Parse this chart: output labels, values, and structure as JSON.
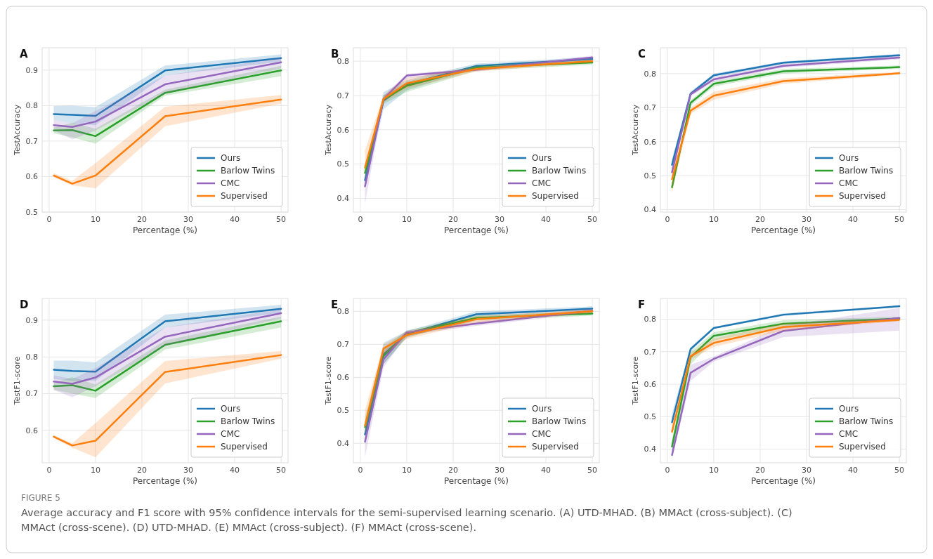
{
  "chart_data": [
    {
      "type": "line",
      "title": "A",
      "xlabel": "Percentage (%)",
      "ylabel": "TestAccuracy",
      "xlim": [
        -1.5,
        51.5
      ],
      "ylim": [
        0.5,
        0.963
      ],
      "xticks": [
        0,
        10,
        20,
        30,
        40,
        50
      ],
      "yticks": [
        0.5,
        0.6,
        0.7,
        0.8,
        0.9
      ],
      "grid": true,
      "legend": "bottom right",
      "x": [
        1,
        5,
        10,
        25,
        50
      ],
      "series": [
        {
          "name": "Ours",
          "color": "#1f77b4",
          "values": [
            0.776,
            0.774,
            0.771,
            0.899,
            0.934
          ],
          "lower": [
            0.76,
            0.75,
            0.745,
            0.885,
            0.924
          ],
          "upper": [
            0.799,
            0.8,
            0.796,
            0.913,
            0.944
          ]
        },
        {
          "name": "Barlow Twins",
          "color": "#2ca02c",
          "values": [
            0.73,
            0.731,
            0.714,
            0.836,
            0.899
          ],
          "lower": [
            0.722,
            0.71,
            0.693,
            0.828,
            0.883
          ],
          "upper": [
            0.738,
            0.752,
            0.735,
            0.845,
            0.912
          ]
        },
        {
          "name": "CMC",
          "color": "#9467bd",
          "values": [
            0.745,
            0.74,
            0.755,
            0.86,
            0.922
          ],
          "lower": [
            0.73,
            0.705,
            0.73,
            0.835,
            0.905
          ],
          "upper": [
            0.76,
            0.75,
            0.785,
            0.885,
            0.935
          ]
        },
        {
          "name": "Supervised",
          "color": "#ff7f0e",
          "values": [
            0.603,
            0.58,
            0.603,
            0.77,
            0.817
          ],
          "lower": [
            0.598,
            0.575,
            0.567,
            0.742,
            0.805
          ],
          "upper": [
            0.61,
            0.588,
            0.638,
            0.797,
            0.83
          ]
        }
      ],
      "annotations": [
        "FIGURE 5",
        "Average accuracy and F1 score with 95% confidence intervals for the semi-supervised learning scenario. (A) UTD-MHAD. (B) MMAct (cross-subject). (C) MMAct (cross-scene). (D) UTD-MHAD. (E) MMAct (cross-subject). (F) MMAct (cross-scene)."
      ]
    },
    {
      "type": "line",
      "title": "B",
      "xlabel": "Percentage (%)",
      "ylabel": "TestAccuracy",
      "xlim": [
        -1.5,
        51.5
      ],
      "ylim": [
        0.36,
        0.839
      ],
      "xticks": [
        0,
        10,
        20,
        30,
        40,
        50
      ],
      "yticks": [
        0.4,
        0.5,
        0.6,
        0.7,
        0.8
      ],
      "grid": true,
      "legend": "bottom right",
      "x": [
        1,
        5,
        10,
        25,
        50
      ],
      "series": [
        {
          "name": "Ours",
          "color": "#1f77b4",
          "values": [
            0.453,
            0.685,
            0.732,
            0.786,
            0.806
          ],
          "lower": [
            0.43,
            0.66,
            0.715,
            0.778,
            0.8
          ],
          "upper": [
            0.48,
            0.71,
            0.745,
            0.793,
            0.812
          ]
        },
        {
          "name": "Barlow Twins",
          "color": "#2ca02c",
          "values": [
            0.474,
            0.688,
            0.728,
            0.781,
            0.796
          ],
          "lower": [
            0.455,
            0.675,
            0.71,
            0.772,
            0.79
          ],
          "upper": [
            0.49,
            0.7,
            0.74,
            0.788,
            0.802
          ]
        },
        {
          "name": "CMC",
          "color": "#9467bd",
          "values": [
            0.435,
            0.69,
            0.758,
            0.775,
            0.811
          ],
          "lower": [
            0.385,
            0.68,
            0.75,
            0.77,
            0.806
          ],
          "upper": [
            0.46,
            0.7,
            0.763,
            0.78,
            0.816
          ]
        },
        {
          "name": "Supervised",
          "color": "#ff7f0e",
          "values": [
            0.49,
            0.69,
            0.735,
            0.777,
            0.8
          ],
          "lower": [
            0.47,
            0.68,
            0.72,
            0.77,
            0.795
          ],
          "upper": [
            0.54,
            0.7,
            0.75,
            0.783,
            0.805
          ]
        }
      ]
    },
    {
      "type": "line",
      "title": "C",
      "xlabel": "Percentage (%)",
      "ylabel": "TestAccuracy",
      "xlim": [
        -1.5,
        51.5
      ],
      "ylim": [
        0.393,
        0.876
      ],
      "xticks": [
        0,
        10,
        20,
        30,
        40,
        50
      ],
      "yticks": [
        0.4,
        0.5,
        0.6,
        0.7,
        0.8
      ],
      "grid": true,
      "legend": "bottom right",
      "x": [
        1,
        5,
        10,
        25,
        50
      ],
      "series": [
        {
          "name": "Ours",
          "color": "#1f77b4",
          "values": [
            0.532,
            0.741,
            0.795,
            0.832,
            0.854
          ],
          "lower": [
            0.515,
            0.735,
            0.79,
            0.828,
            0.85
          ],
          "upper": [
            0.55,
            0.747,
            0.8,
            0.836,
            0.858
          ]
        },
        {
          "name": "Barlow Twins",
          "color": "#2ca02c",
          "values": [
            0.466,
            0.714,
            0.77,
            0.807,
            0.819
          ],
          "lower": [
            0.455,
            0.705,
            0.762,
            0.8,
            0.814
          ],
          "upper": [
            0.48,
            0.722,
            0.777,
            0.814,
            0.824
          ]
        },
        {
          "name": "CMC",
          "color": "#9467bd",
          "values": [
            0.51,
            0.739,
            0.783,
            0.823,
            0.847
          ],
          "lower": [
            0.495,
            0.733,
            0.776,
            0.817,
            0.842
          ],
          "upper": [
            0.525,
            0.745,
            0.79,
            0.829,
            0.852
          ]
        },
        {
          "name": "Supervised",
          "color": "#ff7f0e",
          "values": [
            0.49,
            0.691,
            0.735,
            0.778,
            0.801
          ],
          "lower": [
            0.45,
            0.682,
            0.723,
            0.77,
            0.797
          ],
          "upper": [
            0.5,
            0.7,
            0.747,
            0.786,
            0.805
          ]
        }
      ]
    },
    {
      "type": "line",
      "title": "D",
      "xlabel": "Percentage (%)",
      "ylabel": "TestF1-score",
      "xlim": [
        -1.5,
        51.5
      ],
      "ylim": [
        0.512,
        0.959
      ],
      "xticks": [
        0,
        10,
        20,
        30,
        40,
        50
      ],
      "yticks": [
        0.6,
        0.7,
        0.8,
        0.9
      ],
      "grid": true,
      "legend": "bottom right",
      "x": [
        1,
        5,
        10,
        25,
        50
      ],
      "series": [
        {
          "name": "Ours",
          "color": "#1f77b4",
          "values": [
            0.765,
            0.762,
            0.76,
            0.897,
            0.931
          ],
          "lower": [
            0.74,
            0.735,
            0.735,
            0.88,
            0.92
          ],
          "upper": [
            0.79,
            0.79,
            0.785,
            0.915,
            0.942
          ]
        },
        {
          "name": "Barlow Twins",
          "color": "#2ca02c",
          "values": [
            0.72,
            0.723,
            0.708,
            0.833,
            0.897
          ],
          "lower": [
            0.71,
            0.7,
            0.688,
            0.82,
            0.88
          ],
          "upper": [
            0.73,
            0.745,
            0.725,
            0.845,
            0.91
          ]
        },
        {
          "name": "CMC",
          "color": "#9467bd",
          "values": [
            0.733,
            0.727,
            0.744,
            0.855,
            0.919
          ],
          "lower": [
            0.71,
            0.69,
            0.72,
            0.83,
            0.905
          ],
          "upper": [
            0.75,
            0.74,
            0.77,
            0.88,
            0.93
          ]
        },
        {
          "name": "Supervised",
          "color": "#ff7f0e",
          "values": [
            0.583,
            0.559,
            0.572,
            0.759,
            0.805
          ],
          "lower": [
            0.58,
            0.553,
            0.527,
            0.728,
            0.795
          ],
          "upper": [
            0.587,
            0.565,
            0.62,
            0.789,
            0.816
          ]
        }
      ]
    },
    {
      "type": "line",
      "title": "E",
      "xlabel": "Percentage (%)",
      "ylabel": "TestF1-score",
      "xlim": [
        -1.5,
        51.5
      ],
      "ylim": [
        0.341,
        0.839
      ],
      "xticks": [
        0,
        10,
        20,
        30,
        40,
        50
      ],
      "yticks": [
        0.4,
        0.5,
        0.6,
        0.7,
        0.8
      ],
      "grid": true,
      "legend": "bottom right",
      "x": [
        1,
        5,
        10,
        25,
        50
      ],
      "series": [
        {
          "name": "Ours",
          "color": "#1f77b4",
          "values": [
            0.427,
            0.67,
            0.731,
            0.791,
            0.808
          ],
          "lower": [
            0.4,
            0.64,
            0.72,
            0.78,
            0.8
          ],
          "upper": [
            0.46,
            0.705,
            0.74,
            0.8,
            0.815
          ]
        },
        {
          "name": "Barlow Twins",
          "color": "#2ca02c",
          "values": [
            0.449,
            0.665,
            0.733,
            0.78,
            0.793
          ],
          "lower": [
            0.42,
            0.64,
            0.722,
            0.772,
            0.787
          ],
          "upper": [
            0.48,
            0.69,
            0.742,
            0.788,
            0.799
          ]
        },
        {
          "name": "CMC",
          "color": "#9467bd",
          "values": [
            0.405,
            0.655,
            0.736,
            0.763,
            0.802
          ],
          "lower": [
            0.36,
            0.63,
            0.728,
            0.756,
            0.796
          ],
          "upper": [
            0.44,
            0.68,
            0.742,
            0.77,
            0.808
          ]
        },
        {
          "name": "Supervised",
          "color": "#ff7f0e",
          "values": [
            0.454,
            0.687,
            0.728,
            0.776,
            0.8
          ],
          "lower": [
            0.43,
            0.67,
            0.716,
            0.766,
            0.795
          ],
          "upper": [
            0.5,
            0.7,
            0.738,
            0.785,
            0.806
          ]
        }
      ]
    },
    {
      "type": "line",
      "title": "F",
      "xlabel": "Percentage (%)",
      "ylabel": "TestF1-score",
      "xlim": [
        -1.5,
        51.5
      ],
      "ylim": [
        0.358,
        0.864
      ],
      "xticks": [
        0,
        10,
        20,
        30,
        40,
        50
      ],
      "yticks": [
        0.4,
        0.5,
        0.6,
        0.7,
        0.8
      ],
      "grid": true,
      "legend": "bottom right",
      "x": [
        1,
        5,
        10,
        25,
        50
      ],
      "series": [
        {
          "name": "Ours",
          "color": "#1f77b4",
          "values": [
            0.483,
            0.708,
            0.773,
            0.814,
            0.84
          ],
          "lower": [
            0.47,
            0.7,
            0.77,
            0.81,
            0.837
          ],
          "upper": [
            0.51,
            0.715,
            0.777,
            0.818,
            0.843
          ]
        },
        {
          "name": "Barlow Twins",
          "color": "#2ca02c",
          "values": [
            0.408,
            0.683,
            0.749,
            0.786,
            0.802
          ],
          "lower": [
            0.39,
            0.66,
            0.735,
            0.775,
            0.796
          ],
          "upper": [
            0.43,
            0.7,
            0.76,
            0.797,
            0.808
          ]
        },
        {
          "name": "CMC",
          "color": "#9467bd",
          "values": [
            0.382,
            0.635,
            0.678,
            0.764,
            0.804
          ],
          "lower": [
            0.37,
            0.61,
            0.67,
            0.745,
            0.765
          ],
          "upper": [
            0.4,
            0.66,
            0.685,
            0.78,
            0.835
          ]
        },
        {
          "name": "Supervised",
          "color": "#ff7f0e",
          "values": [
            0.454,
            0.686,
            0.727,
            0.776,
            0.798
          ],
          "lower": [
            0.44,
            0.675,
            0.715,
            0.765,
            0.794
          ],
          "upper": [
            0.47,
            0.697,
            0.74,
            0.787,
            0.802
          ]
        }
      ]
    }
  ]
}
